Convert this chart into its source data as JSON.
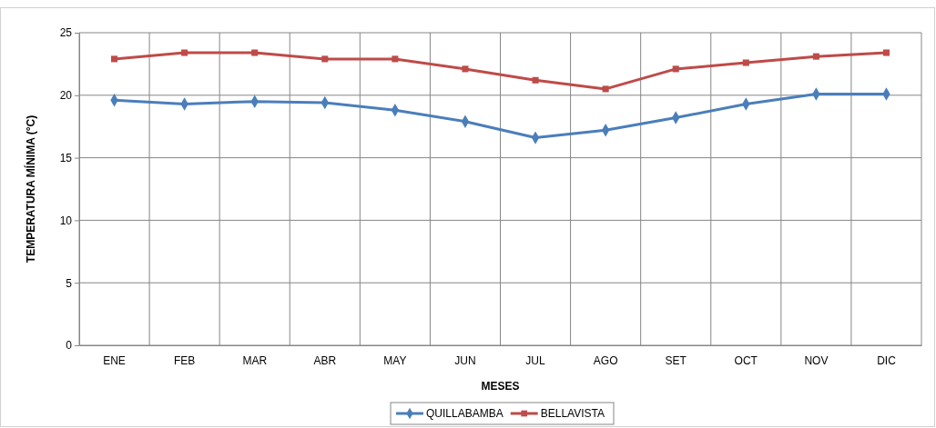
{
  "chart_data": {
    "type": "line",
    "xlabel": "MESES",
    "ylabel": "TEMPERATURA MÍNIMA (°C)",
    "categories": [
      "ENE",
      "FEB",
      "MAR",
      "ABR",
      "MAY",
      "JUN",
      "JUL",
      "AGO",
      "SET",
      "OCT",
      "NOV",
      "DIC"
    ],
    "series": [
      {
        "name": "QUILLABAMBA",
        "color": "#4a7ebb",
        "marker": "diamond",
        "values": [
          19.6,
          19.3,
          19.5,
          19.4,
          18.8,
          17.9,
          16.6,
          17.2,
          18.2,
          19.3,
          20.1,
          20.1
        ]
      },
      {
        "name": "BELLAVISTA",
        "color": "#be4b48",
        "marker": "square",
        "values": [
          22.9,
          23.4,
          23.4,
          22.9,
          22.9,
          22.1,
          21.2,
          20.5,
          22.1,
          22.6,
          23.1,
          23.4
        ]
      }
    ],
    "ylim": [
      0,
      25
    ],
    "yticks": [
      0,
      5,
      10,
      15,
      20,
      25
    ],
    "grid": true,
    "legend": "bottom",
    "line_style": "solid"
  }
}
